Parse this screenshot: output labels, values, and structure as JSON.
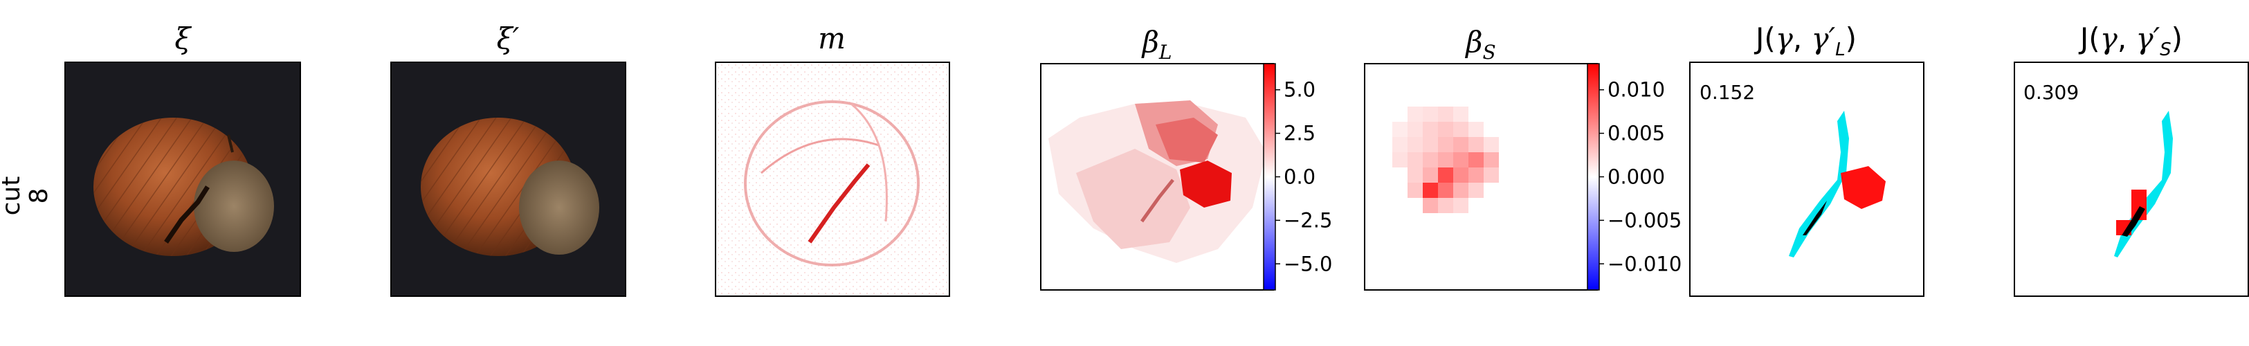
{
  "figure": {
    "row_label": {
      "line1": "cut",
      "line2": "8"
    },
    "panels": [
      {
        "id": "xi",
        "title": "ξ"
      },
      {
        "id": "xi_prime",
        "title": "ξ′"
      },
      {
        "id": "m",
        "title": "m"
      },
      {
        "id": "beta_L",
        "title_main": "β",
        "title_sub": "L"
      },
      {
        "id": "beta_S",
        "title_main": "β",
        "title_sub": "S"
      },
      {
        "id": "J_L",
        "title_prefix": "J(",
        "gamma": "γ",
        "sep": ", ",
        "gamma_prime": "γ′",
        "sub": "L",
        "title_suffix": ")",
        "score": "0.152"
      },
      {
        "id": "J_S",
        "title_prefix": "J(",
        "gamma": "γ",
        "sep": ", ",
        "gamma_prime": "γ′",
        "sub": "S",
        "title_suffix": ")",
        "score": "0.309"
      }
    ],
    "colorbars": [
      {
        "id": "beta_L_cbar",
        "ticks": [
          "5.0",
          "2.5",
          "0.0",
          "−2.5",
          "−5.0"
        ],
        "range": [
          -6.5,
          6.5
        ]
      },
      {
        "id": "beta_S_cbar",
        "ticks": [
          "0.010",
          "0.005",
          "0.000",
          "−0.005",
          "−0.010"
        ],
        "range": [
          -0.013,
          0.013
        ]
      }
    ],
    "colors": {
      "background": "#ffffff",
      "frame": "#000000",
      "photo_background": "#1a1a1f",
      "diverging_low": "#0000ff",
      "diverging_mid": "#ffffff",
      "diverging_high": "#ff0000",
      "mask_overlay": "#ff0000",
      "ground_truth": "#00e5ee",
      "overlap": "#000000"
    }
  }
}
